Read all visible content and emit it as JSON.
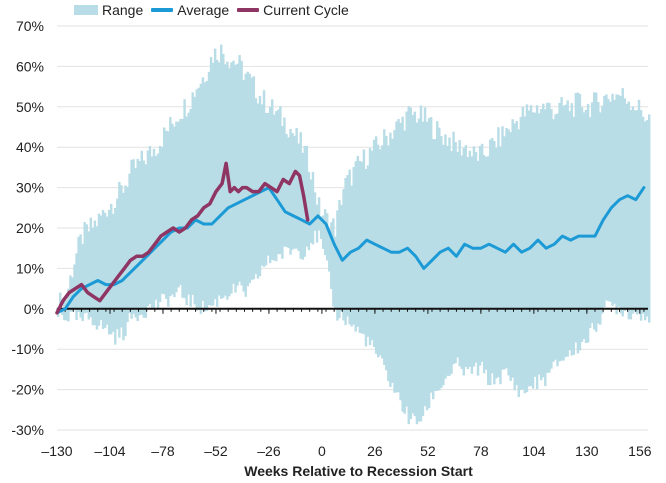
{
  "chart_data": {
    "type": "area",
    "xlabel": "Weeks Relative to Recession Start",
    "ylabel": "",
    "xlim": [
      -130,
      160
    ],
    "ylim": [
      -30,
      70
    ],
    "x_ticks": [
      -130,
      -104,
      -78,
      -52,
      -26,
      0,
      26,
      52,
      78,
      104,
      130,
      156
    ],
    "y_ticks": [
      70,
      60,
      50,
      40,
      30,
      20,
      10,
      0,
      -10,
      -20,
      -30
    ],
    "y_tick_labels": [
      "70%",
      "60%",
      "50%",
      "40%",
      "30%",
      "20%",
      "10%",
      "0%",
      "-10%",
      "-20%",
      "-30%"
    ],
    "grid": "horizontal",
    "legend_position": "top-left",
    "colors": {
      "range": "#b9dde6",
      "average": "#1c9ad6",
      "current": "#8e3563",
      "zero_line": "#111111",
      "grid": "#e2e2e2"
    },
    "series": [
      {
        "name": "Range",
        "kind": "band",
        "x": [
          -130,
          -126,
          -122,
          -118,
          -114,
          -110,
          -106,
          -102,
          -98,
          -94,
          -90,
          -86,
          -82,
          -78,
          -74,
          -70,
          -66,
          -62,
          -58,
          -54,
          -50,
          -46,
          -42,
          -38,
          -34,
          -30,
          -26,
          -22,
          -18,
          -14,
          -10,
          -6,
          -2,
          2,
          6,
          10,
          14,
          18,
          22,
          26,
          30,
          34,
          38,
          42,
          46,
          50,
          54,
          58,
          62,
          66,
          70,
          74,
          78,
          82,
          86,
          90,
          94,
          98,
          102,
          106,
          110,
          114,
          118,
          122,
          126,
          130,
          134,
          138,
          142,
          146,
          150,
          154,
          158,
          160
        ],
        "low": [
          -1,
          -2,
          -2,
          -3,
          -2,
          -4,
          -5,
          -7,
          -6,
          -2,
          -1,
          0,
          1,
          2,
          3,
          4,
          2,
          1,
          0,
          1,
          3,
          4,
          5,
          4,
          6,
          10,
          12,
          13,
          14,
          15,
          14,
          17,
          18,
          10,
          -1,
          -2,
          -4,
          -6,
          -8,
          -11,
          -15,
          -19,
          -23,
          -27,
          -28,
          -26,
          -21,
          -19,
          -16,
          -14,
          -16,
          -15,
          -15,
          -18,
          -17,
          -16,
          -19,
          -21,
          -19,
          -18,
          -17,
          -14,
          -12,
          -11,
          -9,
          -7,
          -4,
          0,
          1,
          0,
          -1,
          -1,
          -1,
          -2
        ],
        "high": [
          1,
          3,
          12,
          18,
          20,
          22,
          25,
          27,
          30,
          34,
          36,
          38,
          40,
          43,
          46,
          49,
          51,
          55,
          58,
          63,
          64,
          62,
          61,
          58,
          55,
          52,
          50,
          48,
          46,
          43,
          40,
          35,
          25,
          22,
          20,
          30,
          33,
          36,
          38,
          40,
          42,
          44,
          46,
          48,
          48,
          47,
          45,
          43,
          42,
          40,
          40,
          38,
          38,
          40,
          42,
          44,
          46,
          48,
          49,
          50,
          50,
          49,
          50,
          50,
          51,
          50,
          51,
          52,
          53,
          53,
          52,
          50,
          48,
          47
        ]
      },
      {
        "name": "Average",
        "kind": "line",
        "x": [
          -130,
          -126,
          -122,
          -118,
          -114,
          -110,
          -106,
          -102,
          -98,
          -94,
          -90,
          -86,
          -82,
          -78,
          -74,
          -70,
          -66,
          -62,
          -58,
          -54,
          -50,
          -46,
          -42,
          -38,
          -34,
          -30,
          -26,
          -22,
          -18,
          -14,
          -10,
          -6,
          -2,
          2,
          6,
          10,
          14,
          18,
          22,
          26,
          30,
          34,
          38,
          42,
          46,
          50,
          54,
          58,
          62,
          66,
          70,
          74,
          78,
          82,
          86,
          90,
          94,
          98,
          102,
          106,
          110,
          114,
          118,
          122,
          126,
          130,
          134,
          138,
          142,
          146,
          150,
          154,
          158
        ],
        "values": [
          -1,
          0,
          3,
          5,
          6,
          7,
          6,
          6,
          7,
          9,
          11,
          13,
          15,
          17,
          19,
          20,
          20,
          22,
          21,
          21,
          23,
          25,
          26,
          27,
          28,
          29,
          30,
          27,
          24,
          23,
          22,
          21,
          23,
          21,
          16,
          12,
          14,
          15,
          17,
          16,
          15,
          14,
          14,
          15,
          13,
          10,
          12,
          14,
          15,
          13,
          16,
          15,
          15,
          16,
          15,
          14,
          16,
          14,
          15,
          17,
          15,
          16,
          18,
          17,
          18,
          18,
          18,
          22,
          25,
          27,
          28,
          27,
          30
        ],
        "note": ""
      },
      {
        "name": "Current Cycle",
        "kind": "line",
        "x": [
          -130,
          -127,
          -124,
          -121,
          -118,
          -115,
          -112,
          -109,
          -106,
          -103,
          -100,
          -97,
          -94,
          -91,
          -88,
          -85,
          -82,
          -79,
          -76,
          -73,
          -70,
          -67,
          -64,
          -61,
          -58,
          -55,
          -52,
          -49,
          -47,
          -45,
          -43,
          -41,
          -39,
          -37,
          -34,
          -31,
          -28,
          -25,
          -22,
          -19,
          -16,
          -13,
          -11,
          -9,
          -7
        ],
        "values": [
          -1,
          2,
          4,
          5,
          6,
          4,
          3,
          2,
          4,
          6,
          8,
          10,
          12,
          13,
          13,
          14,
          16,
          18,
          19,
          20,
          19,
          20,
          22,
          23,
          25,
          26,
          29,
          31,
          36,
          29,
          30,
          29,
          30,
          30,
          29,
          29,
          31,
          30,
          29,
          32,
          31,
          34,
          33,
          28,
          22
        ]
      }
    ]
  }
}
